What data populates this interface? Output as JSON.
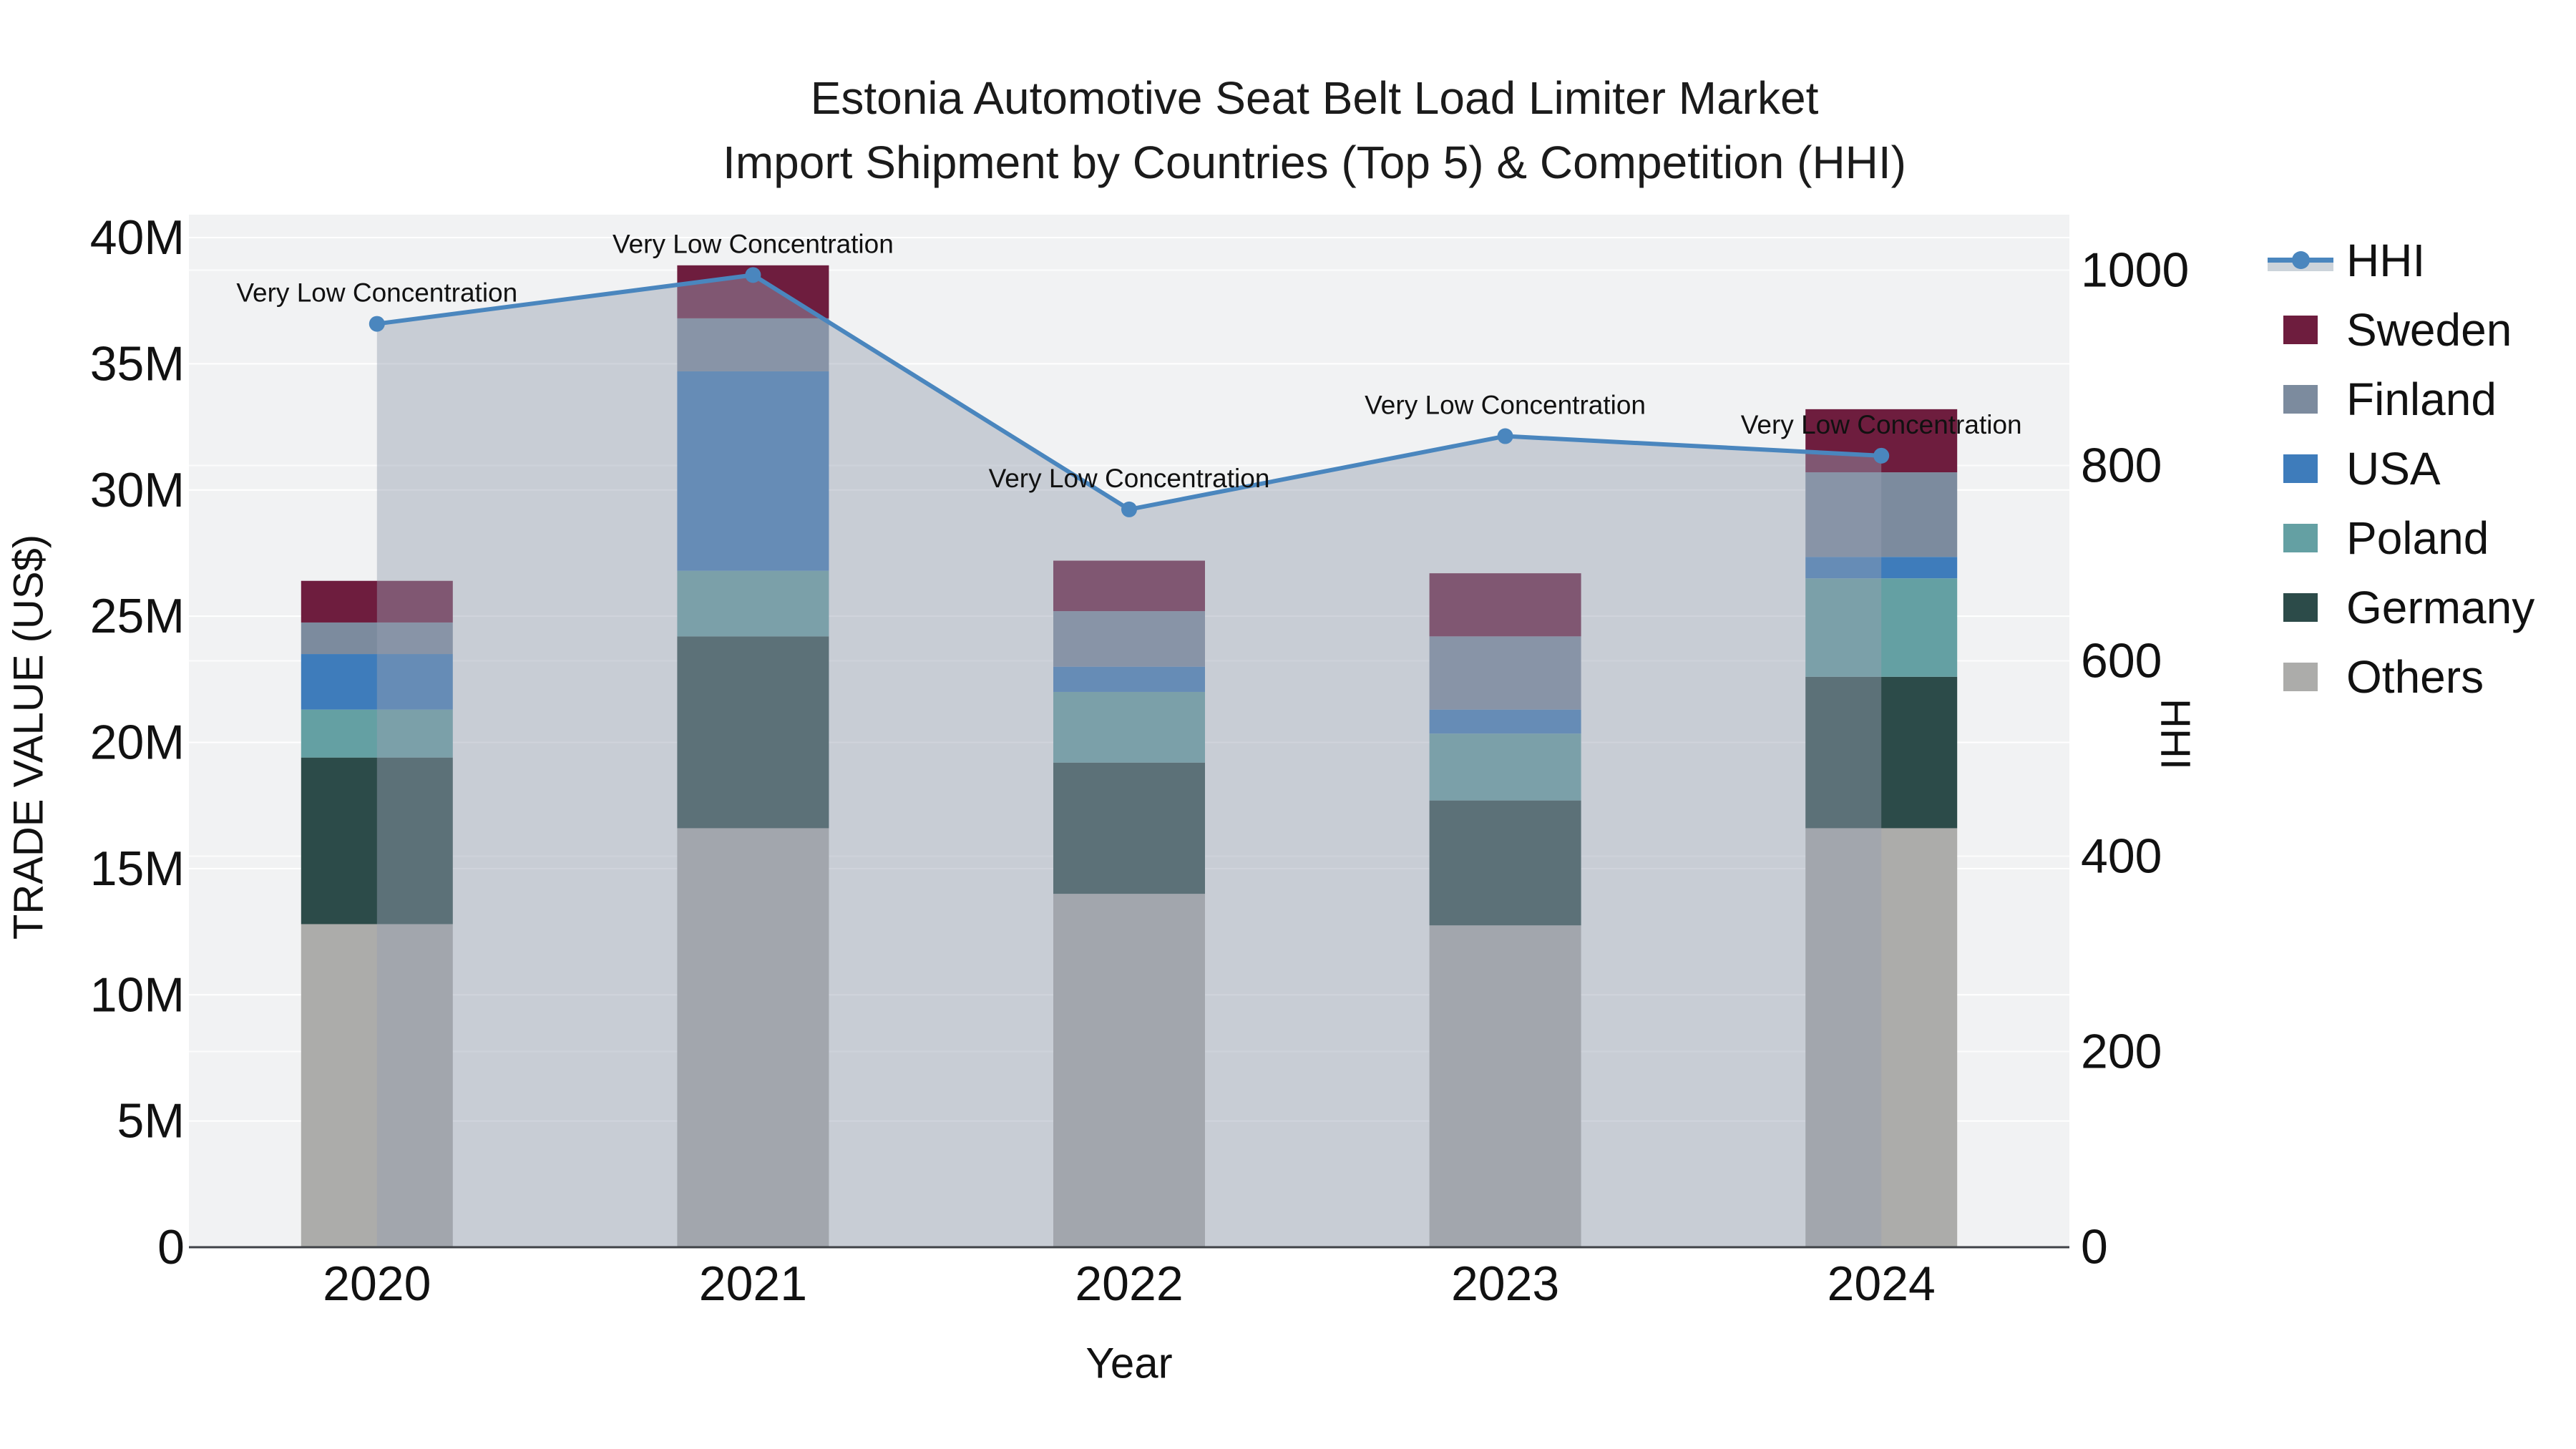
{
  "title": {
    "line1": "Estonia Automotive Seat Belt Load Limiter Market",
    "line2": "Import Shipment by Countries (Top 5) & Competition (HHI)"
  },
  "chart_data": {
    "type": "combo: stacked-bar + line",
    "categories": [
      "2020",
      "2021",
      "2022",
      "2023",
      "2024"
    ],
    "x_axis": {
      "label": "Year"
    },
    "y_left": {
      "label": "TRADE VALUE (US$)",
      "unit": "US$ millions",
      "range": [
        0,
        40
      ],
      "ticks": [
        {
          "v": 0,
          "label": "0"
        },
        {
          "v": 5,
          "label": "5M"
        },
        {
          "v": 10,
          "label": "10M"
        },
        {
          "v": 15,
          "label": "15M"
        },
        {
          "v": 20,
          "label": "20M"
        },
        {
          "v": 25,
          "label": "25M"
        },
        {
          "v": 30,
          "label": "30M"
        },
        {
          "v": 35,
          "label": "35M"
        },
        {
          "v": 40,
          "label": "40M"
        }
      ]
    },
    "y_right": {
      "label": "HHI",
      "range": [
        0,
        1000
      ],
      "ticks": [
        {
          "v": 0,
          "label": "0"
        },
        {
          "v": 200,
          "label": "200"
        },
        {
          "v": 400,
          "label": "400"
        },
        {
          "v": 600,
          "label": "600"
        },
        {
          "v": 800,
          "label": "800"
        },
        {
          "v": 1000,
          "label": "1000"
        }
      ]
    },
    "bar_series": [
      {
        "name": "Others",
        "color": "#acacaa",
        "values": [
          12.8,
          16.6,
          14.0,
          12.75,
          16.6
        ]
      },
      {
        "name": "Germany",
        "color": "#2c4b49",
        "values": [
          6.6,
          7.6,
          5.2,
          4.95,
          6.0
        ]
      },
      {
        "name": "Poland",
        "color": "#64a0a3",
        "values": [
          1.9,
          2.6,
          2.8,
          2.65,
          3.9
        ]
      },
      {
        "name": "USA",
        "color": "#3e7cbb",
        "values": [
          2.2,
          7.9,
          1.0,
          0.95,
          0.85
        ]
      },
      {
        "name": "Finland",
        "color": "#7c8b9e",
        "values": [
          1.25,
          2.1,
          2.2,
          2.9,
          3.35
        ]
      },
      {
        "name": "Sweden",
        "color": "#6e1d3e",
        "values": [
          1.65,
          2.1,
          2.0,
          2.5,
          2.5
        ]
      }
    ],
    "line_series": {
      "name": "HHI",
      "color": "#4a86be",
      "area_fill": "rgba(150,160,178,0.45)",
      "values": [
        945,
        995,
        755,
        830,
        810
      ]
    },
    "annotations": [
      {
        "x": "2020",
        "text": "Very Low Concentration"
      },
      {
        "x": "2021",
        "text": "Very Low Concentration"
      },
      {
        "x": "2022",
        "text": "Very Low Concentration"
      },
      {
        "x": "2023",
        "text": "Very Low Concentration"
      },
      {
        "x": "2024",
        "text": "Very Low Concentration"
      }
    ],
    "legend": [
      {
        "name": "HHI",
        "type": "line",
        "color": "#4a86be"
      },
      {
        "name": "Sweden",
        "type": "swatch",
        "color": "#6e1d3e"
      },
      {
        "name": "Finland",
        "type": "swatch",
        "color": "#7c8b9e"
      },
      {
        "name": "USA",
        "type": "swatch",
        "color": "#3e7cbb"
      },
      {
        "name": "Poland",
        "type": "swatch",
        "color": "#64a0a3"
      },
      {
        "name": "Germany",
        "type": "swatch",
        "color": "#2c4b49"
      },
      {
        "name": "Others",
        "type": "swatch",
        "color": "#acacaa"
      }
    ],
    "layout_hints": {
      "plot_bg": "#f1f2f3",
      "grid_color": "#ffffff",
      "legend_position": "right",
      "grid": "on"
    }
  }
}
